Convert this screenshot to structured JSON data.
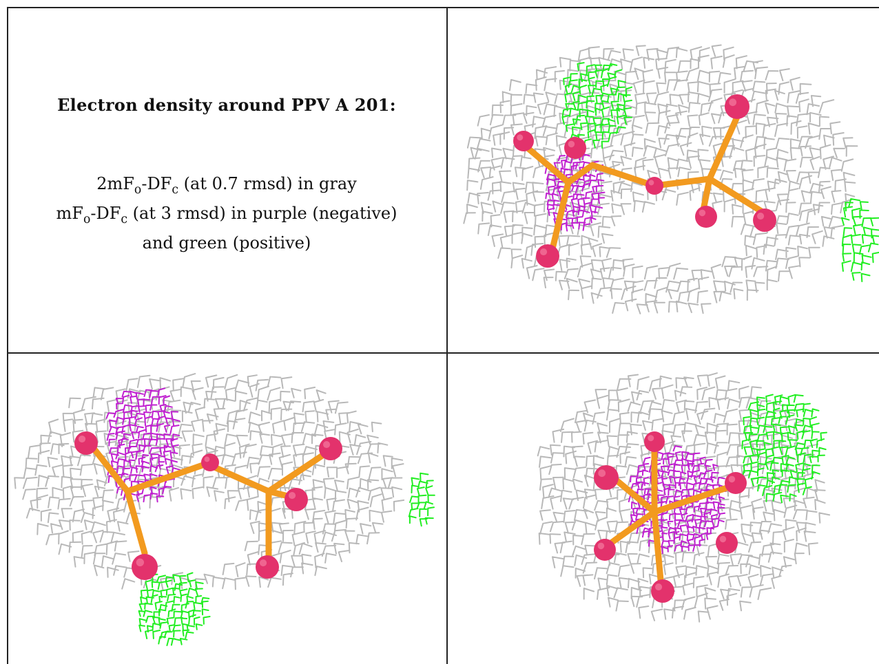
{
  "caption": {
    "title": "Electron density around PPV A 201:",
    "line1": {
      "prefix": "2mF",
      "sub1": "o",
      "mid": "-DF",
      "sub2": "c",
      "suffix": " (at 0.7 rmsd) in gray"
    },
    "line2": {
      "prefix": "mF",
      "sub1": "o",
      "mid": "-DF",
      "sub2": "c",
      "suffix": " (at 3 rmsd) in purple (negative)"
    },
    "line3": "and green (positive)"
  },
  "colors": {
    "map_2fofc": "#b8b8b8",
    "map_negative": "#c020d0",
    "map_positive": "#22ee22",
    "carbon_bond": "#f29a1f",
    "oxygen_atom": "#e3326c",
    "border": "#222222"
  }
}
